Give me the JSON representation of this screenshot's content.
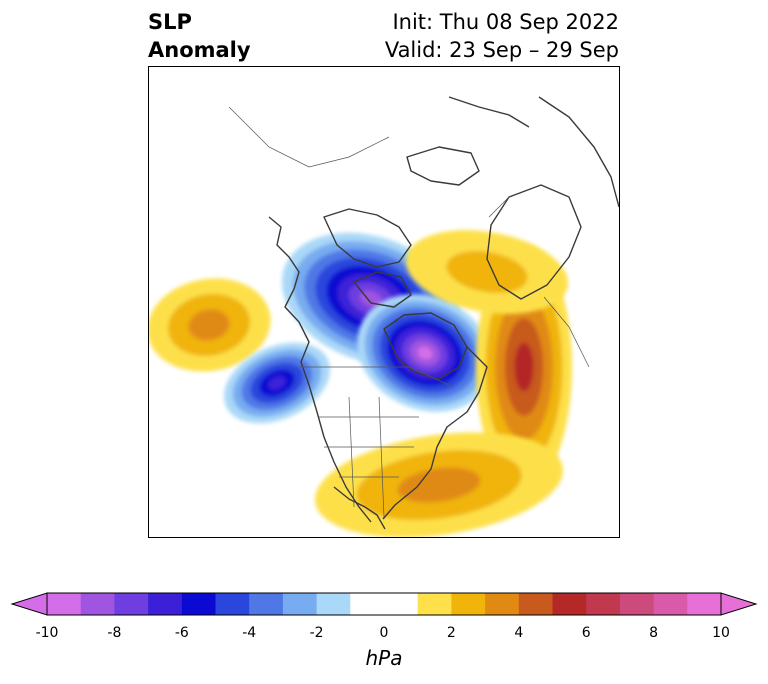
{
  "title": {
    "left_line1": "SLP",
    "left_line2": "Anomaly",
    "right_line1": "Init: Thu 08 Sep 2022",
    "right_line2": "Valid: 23 Sep – 29 Sep"
  },
  "colorbar": {
    "unit": "hPa",
    "tick_labels": [
      "-10",
      "-8",
      "-6",
      "-4",
      "-2",
      "0",
      "2",
      "4",
      "6",
      "8",
      "10"
    ],
    "bins": [
      {
        "from": -10,
        "to": -9,
        "color": "#d46ee8"
      },
      {
        "from": -9,
        "to": -8,
        "color": "#a055e0"
      },
      {
        "from": -8,
        "to": -7,
        "color": "#6e3ee0"
      },
      {
        "from": -7,
        "to": -6,
        "color": "#3c20d8"
      },
      {
        "from": -6,
        "to": -5,
        "color": "#0a0ad2"
      },
      {
        "from": -5,
        "to": -4,
        "color": "#2a46dc"
      },
      {
        "from": -4,
        "to": -3,
        "color": "#4f78e6"
      },
      {
        "from": -3,
        "to": -2,
        "color": "#78acf0"
      },
      {
        "from": -2,
        "to": -1,
        "color": "#aad8f8"
      },
      {
        "from": -1,
        "to": 1,
        "color": "#ffffff"
      },
      {
        "from": 1,
        "to": 2,
        "color": "#fde04a"
      },
      {
        "from": 2,
        "to": 3,
        "color": "#f0b40a"
      },
      {
        "from": 3,
        "to": 4,
        "color": "#e08a14"
      },
      {
        "from": 4,
        "to": 5,
        "color": "#c85a1e"
      },
      {
        "from": 5,
        "to": 6,
        "color": "#b42828"
      },
      {
        "from": 6,
        "to": 7,
        "color": "#c0394e"
      },
      {
        "from": 7,
        "to": 8,
        "color": "#cc4a7c"
      },
      {
        "from": 8,
        "to": 9,
        "color": "#d85aa8"
      },
      {
        "from": 9,
        "to": 10,
        "color": "#e670d8"
      }
    ],
    "extend_low_color": "#d46ee8",
    "extend_high_color": "#e670d8"
  },
  "map": {
    "field": "SLP anomaly",
    "features": [
      {
        "name": "eastern-pacific-high",
        "peak_hpa": 3,
        "sign": "positive"
      },
      {
        "name": "gulf-of-alaska-low",
        "peak_hpa": -6,
        "sign": "negative"
      },
      {
        "name": "canadian-arctic-low",
        "peak_hpa": -8,
        "sign": "negative"
      },
      {
        "name": "hudson-bay-low",
        "peak_hpa": -9,
        "sign": "negative"
      },
      {
        "name": "north-atlantic-high",
        "peak_hpa": 5,
        "sign": "positive"
      },
      {
        "name": "greenland-europe-high",
        "peak_hpa": 2,
        "sign": "positive"
      },
      {
        "name": "central-us-high",
        "peak_hpa": 3,
        "sign": "positive"
      }
    ]
  }
}
